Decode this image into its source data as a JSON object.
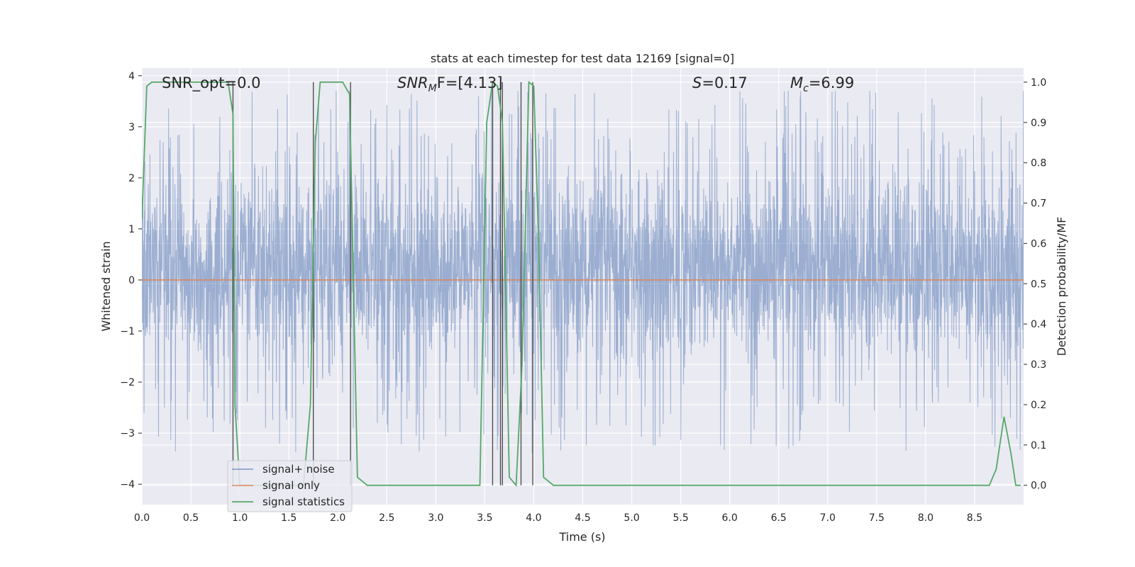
{
  "chart_data": {
    "type": "line",
    "title": "stats at each timestep for test data 12169 [signal=0]",
    "xlabel": "Time (s)",
    "ylabel": "Whitened strain",
    "y2label": "Detection probability/MF",
    "xlim": [
      0.0,
      9.0
    ],
    "ylim": [
      -4.4,
      4.15
    ],
    "y2lim": [
      -0.048,
      1.035
    ],
    "xticks": [
      "0.0",
      "0.5",
      "1.0",
      "1.5",
      "2.0",
      "2.5",
      "3.0",
      "3.5",
      "4.0",
      "4.5",
      "5.0",
      "5.5",
      "6.0",
      "6.5",
      "7.0",
      "7.5",
      "8.0",
      "8.5"
    ],
    "yticks": [
      "4",
      "3",
      "2",
      "1",
      "0",
      "−1",
      "−2",
      "−3",
      "−4"
    ],
    "y2ticks": [
      "1.0",
      "0.9",
      "0.8",
      "0.7",
      "0.6",
      "0.5",
      "0.4",
      "0.3",
      "0.2",
      "0.1",
      "0.0"
    ],
    "grid": true,
    "legend_position": "lower-left",
    "annotations": {
      "snr_opt": "SNR_opt=0.0",
      "snr_mf_base": "SNR",
      "snr_mf_sub": "M",
      "snr_mf_rest": "F=[4.13]",
      "s_symbol": "S",
      "s_value": "=0.17",
      "mc_base": "M",
      "mc_sub": "c",
      "mc_value": "=6.99"
    },
    "series": [
      {
        "name": "signal+ noise",
        "color": "#4c72b0",
        "axis": "left",
        "description": "whitened noise, roughly within ±2.3 with spikes to ±3.5",
        "envelope_typical": [
          -1.7,
          2.2
        ],
        "envelope_peak": [
          -4.0,
          3.7
        ]
      },
      {
        "name": "signal only",
        "color": "#dd8452",
        "axis": "left",
        "x": [
          0.0,
          9.0
        ],
        "y": [
          0.0,
          0.0
        ]
      },
      {
        "name": "signal statistics",
        "color": "#55a868",
        "axis": "right",
        "x": [
          0.0,
          0.05,
          0.1,
          0.2,
          0.4,
          0.6,
          0.8,
          0.88,
          0.93,
          0.95,
          1.0,
          1.2,
          1.4,
          1.55,
          1.65,
          1.72,
          1.77,
          1.82,
          1.9,
          2.05,
          2.12,
          2.2,
          2.3,
          2.5,
          3.0,
          3.45,
          3.52,
          3.58,
          3.63,
          3.68,
          3.75,
          3.82,
          3.88,
          3.95,
          4.0,
          4.05,
          4.1,
          4.2,
          4.5,
          5.0,
          6.0,
          7.0,
          8.0,
          8.65,
          8.72,
          8.8,
          8.87,
          8.92,
          8.97
        ],
        "y": [
          0.66,
          0.99,
          1.0,
          1.0,
          1.0,
          1.0,
          1.0,
          1.0,
          0.92,
          0.2,
          0.0,
          0.0,
          0.0,
          0.0,
          0.0,
          0.2,
          0.85,
          1.0,
          1.0,
          1.0,
          0.97,
          0.02,
          0.0,
          0.0,
          0.0,
          0.0,
          0.9,
          1.0,
          0.99,
          0.9,
          0.02,
          0.0,
          0.3,
          1.0,
          0.99,
          0.6,
          0.02,
          0.0,
          0.0,
          0.0,
          0.0,
          0.0,
          0.0,
          0.0,
          0.04,
          0.17,
          0.08,
          0.0,
          0.0
        ]
      }
    ],
    "vlines": {
      "color": "#505050",
      "x": [
        0.93,
        1.75,
        2.13,
        3.58,
        3.66,
        3.68,
        3.87,
        3.99
      ]
    }
  }
}
